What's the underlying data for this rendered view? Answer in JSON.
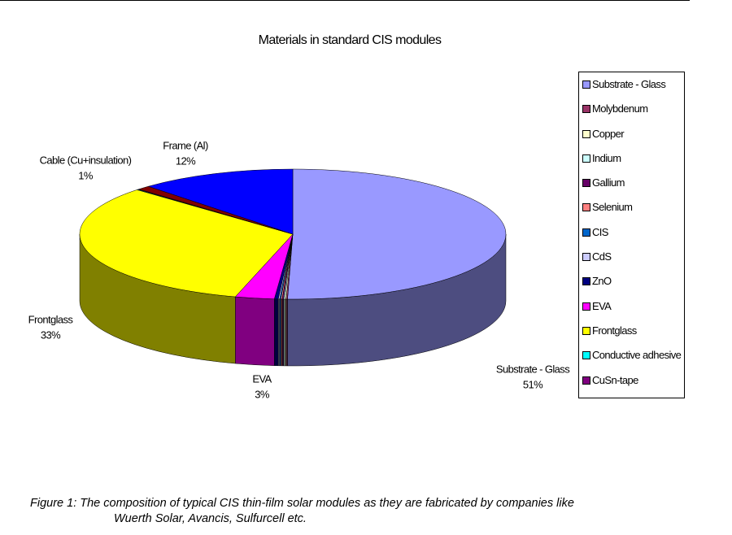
{
  "chart_data": {
    "type": "pie3d",
    "title": "Materials in standard CIS modules",
    "categories": [
      "Substrate - Glass",
      "Molybdenum",
      "Copper",
      "Indium",
      "Gallium",
      "Selenium",
      "CIS",
      "CdS",
      "ZnO",
      "EVA",
      "Frontglass",
      "Conductive adhesive",
      "CuSn-tape",
      "Cable (Cu+insulation)",
      "Frame (Al)"
    ],
    "values": [
      51,
      0.1,
      0.1,
      0.1,
      0.1,
      0.1,
      0.1,
      0.1,
      0.3,
      3,
      33,
      0.1,
      0.1,
      1,
      12
    ],
    "value_labels": [
      "51%",
      null,
      null,
      null,
      null,
      null,
      null,
      null,
      null,
      "3%",
      "33%",
      null,
      null,
      "1%",
      "12%"
    ],
    "colors": [
      "#9999ff",
      "#993366",
      "#ffffcc",
      "#ccffff",
      "#660066",
      "#ff8080",
      "#0066cc",
      "#ccccff",
      "#000080",
      "#ff00ff",
      "#ffff00",
      "#00ffff",
      "#800080",
      "#800000",
      "#0000ff"
    ],
    "legend": "right"
  },
  "caption": [
    "Figure 1: The composition of typical CIS thin-film solar modules as they are fabricated by companies like",
    "Wuerth Solar, Avancis, Sulfurcell etc."
  ]
}
